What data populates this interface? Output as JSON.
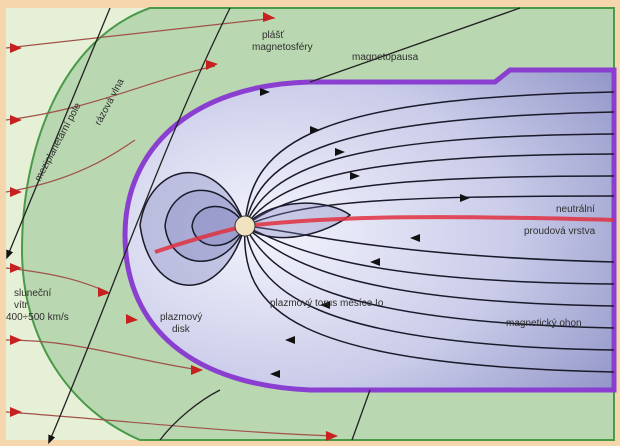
{
  "labels": {
    "magnetosheath": [
      "plášť",
      "magnetosféry"
    ],
    "magnetopause": "magnetopausa",
    "imf": "meziplanetární pole",
    "bow_shock": "rázová vlna",
    "current_sheet": [
      "neutrální",
      "proudová vrstva"
    ],
    "solar_wind": [
      "sluneční",
      "vítr",
      "400÷500 km/s"
    ],
    "plasma_disk": [
      "plazmový",
      "disk"
    ],
    "io_torus": "plazmový torus měsíce Io",
    "magnetotail": "magnetický ohon"
  },
  "colors": {
    "frame": "#f6d7ad",
    "solar_wind_region": "#e6f0d6",
    "magnetosheath": "#b9d7b0",
    "bow_shock_line": "#4a9a4a",
    "magnetopause_line": "#8a3fd0",
    "magnetosphere_light": "#eef0fb",
    "magnetosphere_dark": "#6a6fb0",
    "field_line": "#1a1a2a",
    "flow_line": "#a0524a",
    "arrow_red": "#c62020",
    "current_sheet": "#e03040"
  }
}
